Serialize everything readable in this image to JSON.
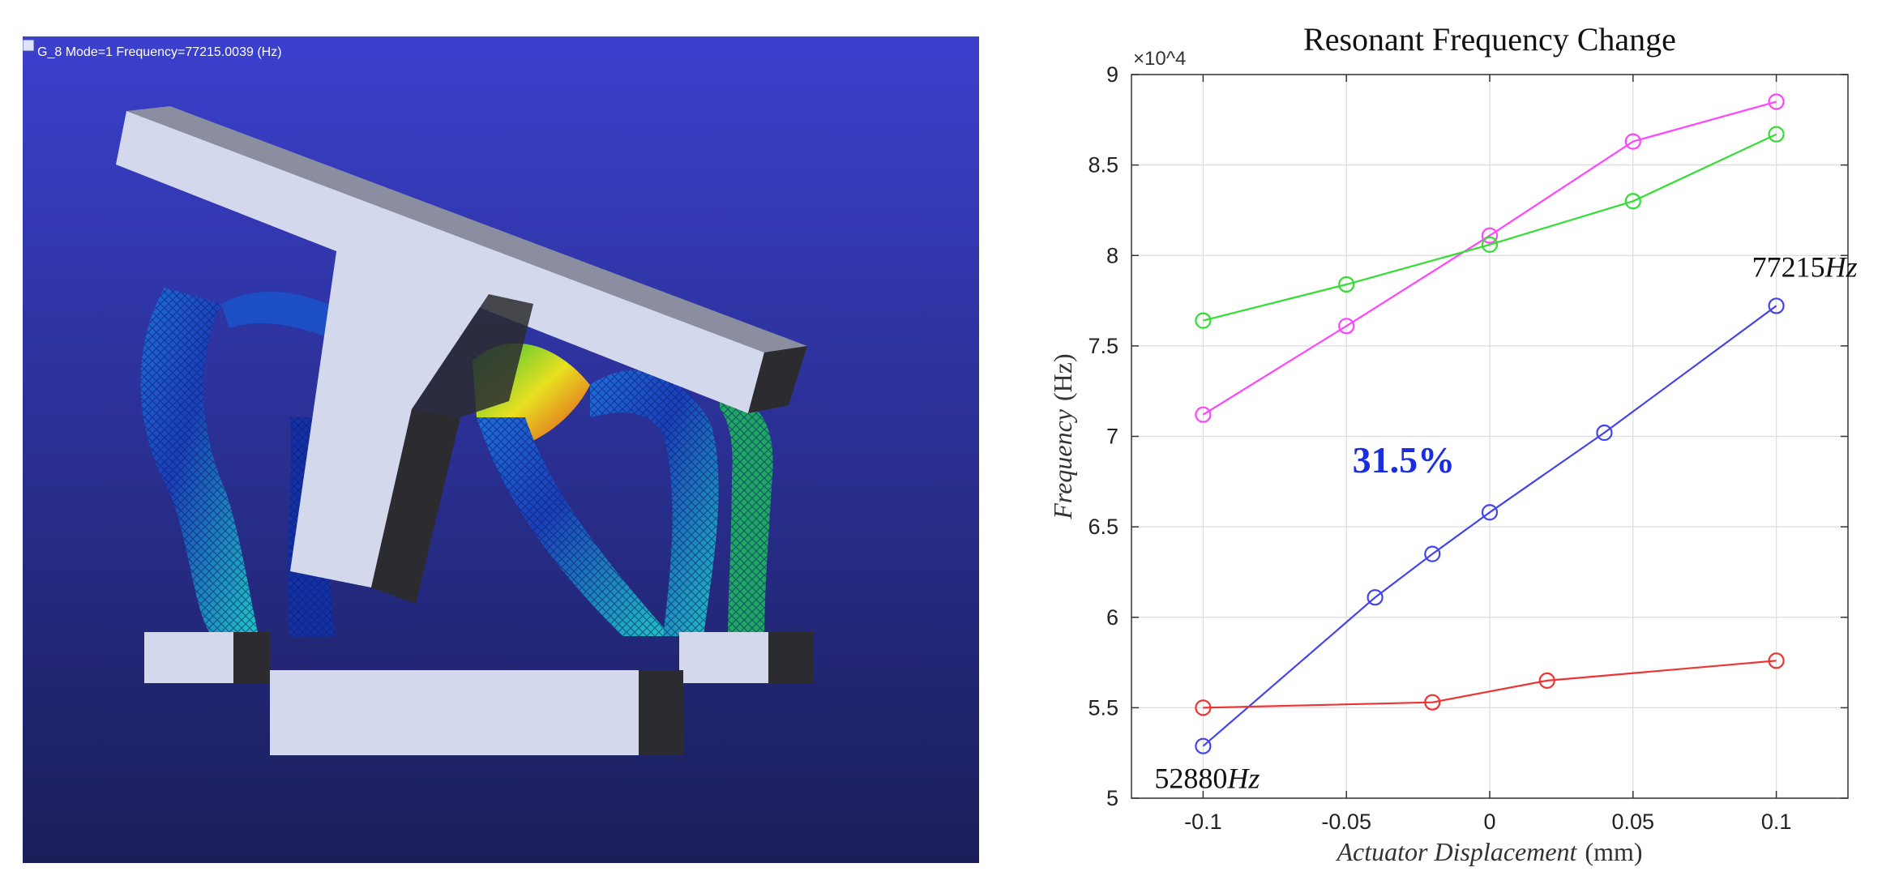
{
  "fea_view": {
    "header": "G_8  Mode=1  Frequency=77215.0039 (Hz)",
    "background_top": "#3a40cc",
    "background_bottom": "#1a1e58"
  },
  "chart_data": {
    "type": "line",
    "title": "Resonant Frequency Change",
    "xlabel_italic": "Actuator Displacement",
    "xlabel_unit": "(mm)",
    "ylabel_italic": "Frequency",
    "ylabel_unit": "(Hz)",
    "y_exponent": "×10^4",
    "xlim": [
      -0.125,
      0.125
    ],
    "ylim": [
      50000,
      90000
    ],
    "xticks": [
      -0.1,
      -0.05,
      0,
      0.05,
      0.1
    ],
    "xtick_labels": [
      "-0.1",
      "-0.05",
      "0",
      "0.05",
      "0.1"
    ],
    "yticks": [
      50000,
      55000,
      60000,
      65000,
      70000,
      75000,
      80000,
      85000,
      90000
    ],
    "ytick_labels": [
      "5",
      "5.5",
      "6",
      "6.5",
      "7",
      "7.5",
      "8",
      "8.5",
      "9"
    ],
    "grid": true,
    "series": [
      {
        "color": "#e6e000",
        "color_real": "#ff44ff",
        "x": [
          -0.1,
          -0.05,
          0,
          0.05,
          0.1
        ],
        "y": [
          71200,
          76100,
          81100,
          86300,
          88500
        ]
      },
      {
        "color": "#33dd33",
        "x": [
          -0.1,
          -0.05,
          0,
          0.05,
          0.1
        ],
        "y": [
          76400,
          78400,
          80600,
          83000,
          86700
        ]
      },
      {
        "color": "#4444ee",
        "x": [
          -0.1,
          -0.04,
          -0.02,
          0,
          0.04,
          0.1
        ],
        "y": [
          52880,
          61100,
          63500,
          65800,
          70200,
          77215
        ]
      },
      {
        "color": "#ee3333",
        "x": [
          -0.1,
          -0.02,
          0.02,
          0.1
        ],
        "y": [
          55000,
          55300,
          56500,
          57600
        ]
      }
    ],
    "annotations": [
      {
        "text": "77215",
        "unit": "Hz",
        "x": 0.1,
        "y": 77215
      },
      {
        "text": "52880",
        "unit": "Hz",
        "x": -0.1,
        "y": 52880
      },
      {
        "text": "31.5%",
        "color": "#1a2ee0"
      }
    ]
  }
}
